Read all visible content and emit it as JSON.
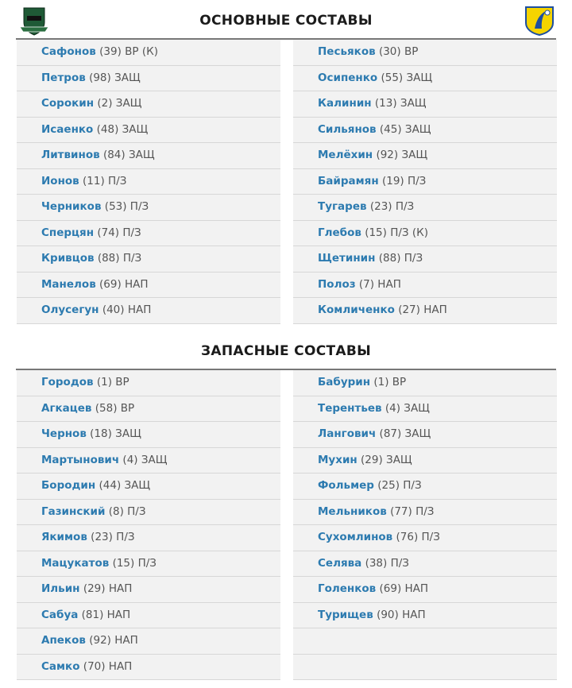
{
  "main_title": "ОСНОВНЫЕ СОСТАВЫ",
  "subs_title": "ЗАПАСНЫЕ СОСТАВЫ",
  "colors": {
    "name": "#2d7bb0",
    "row_bg": "#f2f2f2",
    "home_logo": "#1f5a36",
    "away_logo": "#f5d400"
  },
  "home_logo": "Krasnodar crest",
  "away_logo": "Rostov crest",
  "starting": {
    "home": [
      [
        "Сафонов",
        "(39) ВР (К)"
      ],
      [
        "Петров",
        "(98) ЗАЩ"
      ],
      [
        "Сорокин",
        "(2) ЗАЩ"
      ],
      [
        "Исаенко",
        "(48) ЗАЩ"
      ],
      [
        "Литвинов",
        "(84) ЗАЩ"
      ],
      [
        "Ионов",
        "(11) П/З"
      ],
      [
        "Черников",
        "(53) П/З"
      ],
      [
        "Сперцян",
        "(74) П/З"
      ],
      [
        "Кривцов",
        "(88) П/З"
      ],
      [
        "Манелов",
        "(69) НАП"
      ],
      [
        "Олусегун",
        "(40) НАП"
      ]
    ],
    "away": [
      [
        "Песьяков",
        "(30) ВР"
      ],
      [
        "Осипенко",
        "(55) ЗАЩ"
      ],
      [
        "Калинин",
        "(13) ЗАЩ"
      ],
      [
        "Сильянов",
        "(45) ЗАЩ"
      ],
      [
        "Мелёхин",
        "(92) ЗАЩ"
      ],
      [
        "Байрамян",
        "(19) П/З"
      ],
      [
        "Тугарев",
        "(23) П/З"
      ],
      [
        "Глебов",
        "(15) П/З (К)"
      ],
      [
        "Щетинин",
        "(88) П/З"
      ],
      [
        "Полоз",
        "(7) НАП"
      ],
      [
        "Комличенко",
        "(27) НАП"
      ]
    ]
  },
  "subs": {
    "home": [
      [
        "Городов",
        "(1) ВР"
      ],
      [
        "Агкацев",
        "(58) ВР"
      ],
      [
        "Чернов",
        "(18) ЗАЩ"
      ],
      [
        "Мартынович",
        "(4) ЗАЩ"
      ],
      [
        "Бородин",
        "(44) ЗАЩ"
      ],
      [
        "Газинский",
        "(8) П/З"
      ],
      [
        "Якимов",
        "(23) П/З"
      ],
      [
        "Мацукатов",
        "(15) П/З"
      ],
      [
        "Ильин",
        "(29) НАП"
      ],
      [
        "Сабуа",
        "(81) НАП"
      ],
      [
        "Апеков",
        "(92) НАП"
      ],
      [
        "Самко",
        "(70) НАП"
      ]
    ],
    "away": [
      [
        "Бабурин",
        "(1) ВР"
      ],
      [
        "Терентьев",
        "(4) ЗАЩ"
      ],
      [
        "Лангович",
        "(87) ЗАЩ"
      ],
      [
        "Мухин",
        "(29) ЗАЩ"
      ],
      [
        "Фольмер",
        "(25) П/З"
      ],
      [
        "Мельников",
        "(77) П/З"
      ],
      [
        "Сухомлинов",
        "(76) П/З"
      ],
      [
        "Селява",
        "(38) П/З"
      ],
      [
        "Голенков",
        "(69) НАП"
      ],
      [
        "Турищев",
        "(90) НАП"
      ]
    ]
  }
}
